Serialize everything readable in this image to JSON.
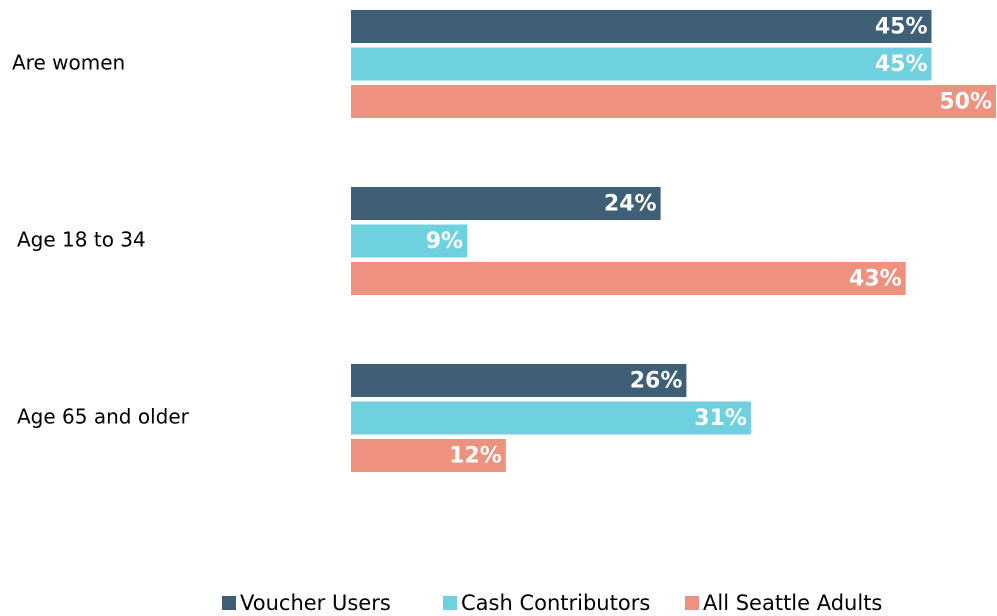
{
  "chart_data": {
    "type": "bar",
    "orientation": "horizontal",
    "categories": [
      "Are women",
      "Age 18 to 34",
      "Age 65 and older"
    ],
    "series": [
      {
        "name": "Voucher Users",
        "color": "#3f5f77",
        "values": [
          45,
          24,
          26
        ],
        "value_labels": [
          "45%",
          "24%",
          "26%"
        ]
      },
      {
        "name": "Cash Contributors",
        "color": "#6fd0e0",
        "values": [
          45,
          9,
          31
        ],
        "value_labels": [
          "45%",
          "9%",
          "31%"
        ]
      },
      {
        "name": "All Seattle Adults",
        "color": "#ee917e",
        "values": [
          50,
          43,
          12
        ],
        "value_labels": [
          "50%",
          "43%",
          "12%"
        ]
      }
    ],
    "legend": "bottom"
  }
}
